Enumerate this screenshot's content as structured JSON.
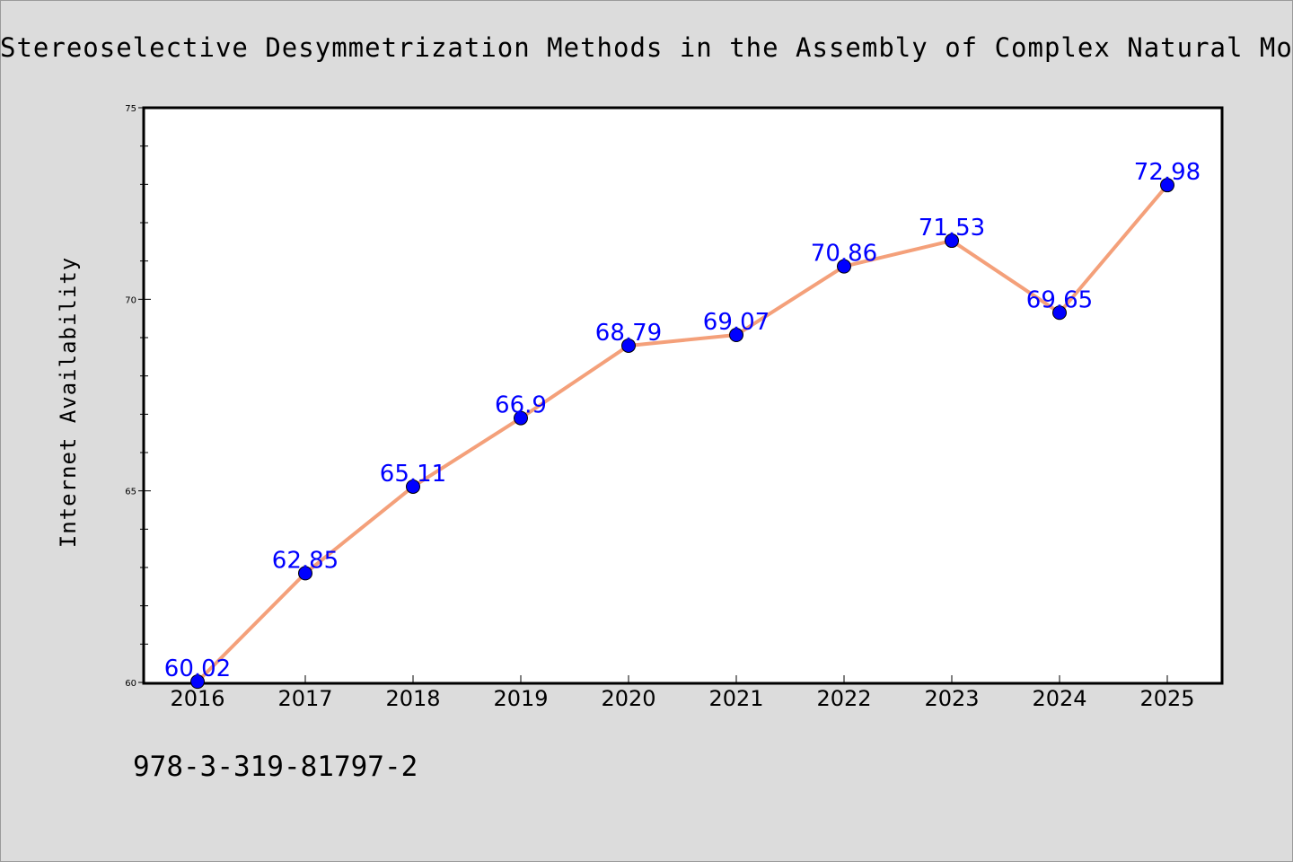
{
  "chart_data": {
    "type": "line",
    "title": "Stereoselective Desymmetrization Methods in the Assembly of Complex Natural Mole",
    "xlabel": "",
    "ylabel": "Internet Availability",
    "categories": [
      "2016",
      "2017",
      "2018",
      "2019",
      "2020",
      "2021",
      "2022",
      "2023",
      "2024",
      "2025"
    ],
    "series": [
      {
        "values": [
          60.02,
          62.85,
          65.11,
          66.9,
          68.79,
          69.07,
          70.86,
          71.53,
          69.65,
          72.98
        ],
        "labels": [
          "60.02",
          "62.85",
          "65.11",
          "66.9",
          "68.79",
          "69.07",
          "70.86",
          "71.53",
          "69.65",
          "72.98"
        ]
      }
    ],
    "ylim": [
      60,
      75
    ],
    "yticks": [
      60,
      65,
      70,
      75
    ],
    "ytick_labels": [
      "60",
      "65",
      "70",
      "75"
    ],
    "grid": false,
    "colors": {
      "line": "#f4a07a",
      "marker": "#0000ff",
      "label": "#0000ff",
      "background": "#dcdcdc",
      "plot_background": "#ffffff"
    }
  },
  "caption": "978-3-319-81797-2"
}
